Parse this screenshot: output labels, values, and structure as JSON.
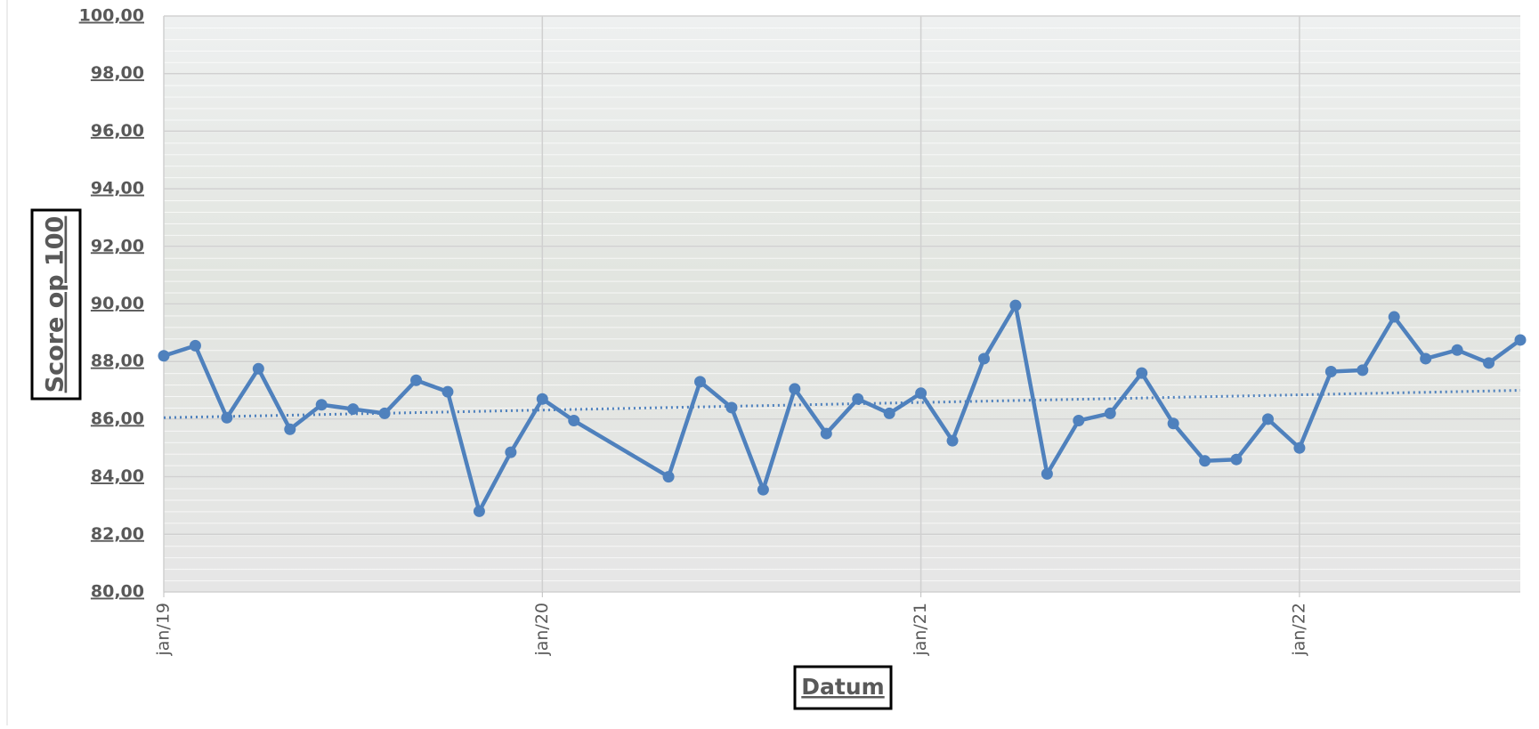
{
  "chart_data": {
    "type": "line",
    "x_label": "Datum",
    "y_label": "Score op 100",
    "x": [
      "2019-01",
      "2019-02",
      "2019-03",
      "2019-04",
      "2019-05",
      "2019-06",
      "2019-07",
      "2019-08",
      "2019-09",
      "2019-10",
      "2019-11",
      "2019-12",
      "2020-01",
      "2020-02",
      "2020-05",
      "2020-06",
      "2020-07",
      "2020-08",
      "2020-09",
      "2020-10",
      "2020-11",
      "2020-12",
      "2021-01",
      "2021-02",
      "2021-03",
      "2021-04",
      "2021-05",
      "2021-06",
      "2021-07",
      "2021-08",
      "2021-09",
      "2021-10",
      "2021-11",
      "2021-12",
      "2022-01",
      "2022-02",
      "2022-03",
      "2022-04",
      "2022-05",
      "2022-06",
      "2022-07",
      "2022-08"
    ],
    "series": [
      {
        "color": "#4f81bd",
        "values": [
          88.2,
          88.55,
          86.05,
          87.75,
          85.65,
          86.5,
          86.35,
          86.2,
          87.35,
          86.95,
          82.8,
          84.85,
          86.7,
          85.95,
          84.0,
          87.3,
          86.4,
          83.55,
          87.05,
          85.5,
          86.7,
          86.2,
          86.9,
          85.25,
          88.1,
          89.95,
          84.1,
          85.95,
          86.2,
          87.6,
          85.85,
          84.55,
          84.6,
          86.0,
          85.0,
          87.65,
          87.7,
          89.55,
          88.1,
          88.4,
          87.95,
          88.75
        ]
      }
    ],
    "trendline": {
      "x": [
        "2019-01",
        "2022-08"
      ],
      "values": [
        86.05,
        87.0
      ],
      "color": "#4f81bd",
      "style": "dotted"
    },
    "xlim": [
      "2019-01",
      "2022-08"
    ],
    "xticks": [
      {
        "value": "2019-01",
        "label": "jan/19"
      },
      {
        "value": "2020-01",
        "label": "jan/20"
      },
      {
        "value": "2021-01",
        "label": "jan/21"
      },
      {
        "value": "2022-01",
        "label": "jan/22"
      }
    ],
    "ylim": [
      80,
      100
    ],
    "yticks": [
      {
        "value": 80,
        "label": "80,00"
      },
      {
        "value": 82,
        "label": "82,00"
      },
      {
        "value": 84,
        "label": "84,00"
      },
      {
        "value": 86,
        "label": "86,00"
      },
      {
        "value": 88,
        "label": "88,00"
      },
      {
        "value": 90,
        "label": "90,00"
      },
      {
        "value": 92,
        "label": "92,00"
      },
      {
        "value": 94,
        "label": "94,00"
      },
      {
        "value": 96,
        "label": "96,00"
      },
      {
        "value": 98,
        "label": "98,00"
      },
      {
        "value": 100,
        "label": "100,00"
      }
    ],
    "grid": true
  }
}
